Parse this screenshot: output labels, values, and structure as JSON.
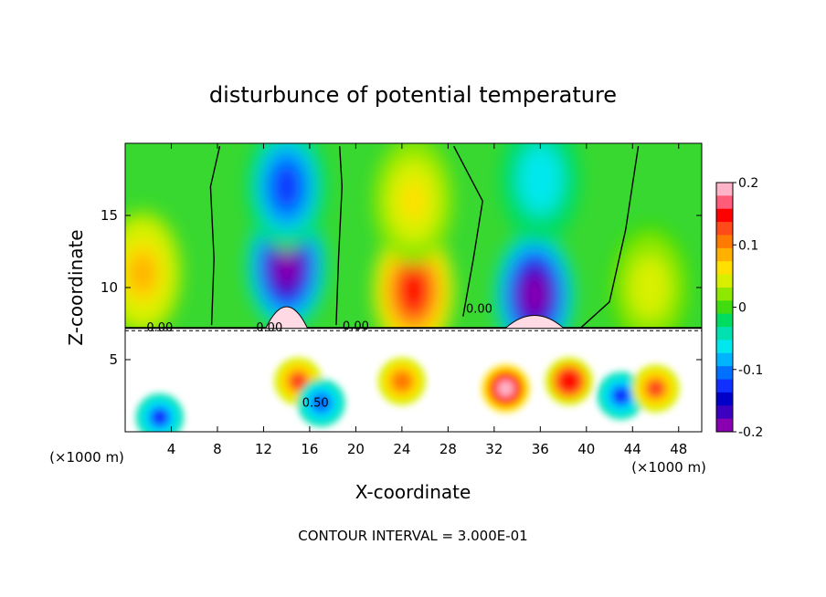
{
  "chart_data": {
    "type": "heatmap",
    "title": "disturbunce of potential temperature",
    "xlabel": "X-coordinate",
    "ylabel": "Z-coordinate",
    "x_unit": "(×1000 m)",
    "xlim": [
      0,
      50
    ],
    "ylim": [
      0,
      20
    ],
    "x_ticks": [
      4,
      8,
      12,
      16,
      20,
      24,
      28,
      32,
      36,
      40,
      44,
      48
    ],
    "y_ticks": [
      5,
      10,
      15
    ],
    "footer": "CONTOUR INTERVAL = 3.000E-01",
    "contour_labels": [
      "0.00",
      "0.00",
      "0.00",
      "0.00",
      "0.50"
    ],
    "colorbar": {
      "range": [
        -0.2,
        0.2
      ],
      "tick_values": [
        0.2,
        0.1,
        0,
        -0.1,
        -0.2
      ],
      "tick_labels": [
        "0.2",
        "0.1",
        "0",
        "-0.1",
        "-0.2"
      ],
      "colors": [
        "#ffb3c8",
        "#ff5c7a",
        "#ff0000",
        "#ff4a1a",
        "#ff7a00",
        "#ffb000",
        "#ffe000",
        "#d8f000",
        "#8ee800",
        "#40dc10",
        "#00dc60",
        "#00e0b0",
        "#00e8ee",
        "#00b4ff",
        "#0070ff",
        "#1030ff",
        "#0000c8",
        "#3c00c0",
        "#8800b0"
      ]
    },
    "upper_blobs": [
      {
        "x": 14,
        "z": 11.5,
        "value": -0.2
      },
      {
        "x": 35.5,
        "z": 9.5,
        "value": -0.2
      },
      {
        "x": 25,
        "z": 9.8,
        "value": 0.15
      },
      {
        "x": 45.5,
        "z": 10,
        "value": 0.04
      },
      {
        "x": 1.5,
        "z": 11,
        "value": 0.08
      },
      {
        "x": 14,
        "z": 17,
        "value": -0.12
      },
      {
        "x": 36,
        "z": 17.5,
        "value": -0.07
      },
      {
        "x": 25,
        "z": 16,
        "value": 0.06
      }
    ],
    "lower_blobs": [
      {
        "x": 33,
        "z": 3,
        "value": 0.18
      },
      {
        "x": 38.5,
        "z": 3.5,
        "value": 0.15
      },
      {
        "x": 3,
        "z": 1,
        "value": -0.12
      },
      {
        "x": 15,
        "z": 3.5,
        "value": 0.12
      },
      {
        "x": 17,
        "z": 2,
        "value": -0.1
      },
      {
        "x": 24,
        "z": 3.5,
        "value": 0.1
      },
      {
        "x": 43,
        "z": 2.5,
        "value": -0.12
      },
      {
        "x": 46,
        "z": 3,
        "value": 0.12
      }
    ]
  }
}
